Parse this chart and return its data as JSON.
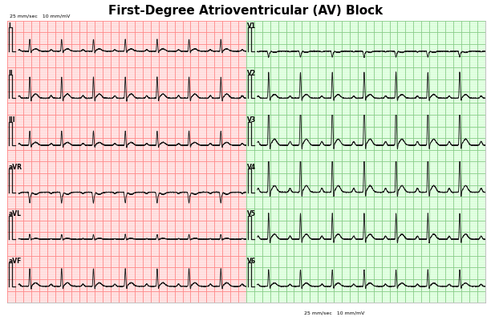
{
  "title": "First-Degree Atrioventricular (AV) Block",
  "title_fontsize": 11,
  "title_fontweight": "bold",
  "background_color": "#FFFFFF",
  "grid_minor_color": "#FFBBBB",
  "grid_major_color": "#FF8888",
  "grid_minor_color_right": "#BBFFBB",
  "grid_major_color_right": "#88CC88",
  "ecg_color": "#1a1a1a",
  "lead_labels_left": [
    "I",
    "II",
    "III",
    "aVR",
    "aVL",
    "aVF"
  ],
  "lead_labels_right": [
    "V1",
    "V2",
    "V3",
    "V4",
    "V5",
    "V6"
  ],
  "calibration_text": "25 mm/sec   10 mm/mV",
  "paper_color_left": "#FFEEEE",
  "paper_color_right": "#EEFFEE",
  "n_rows": 6,
  "n_cols": 2,
  "hr": 75,
  "pr_interval": 0.28,
  "lead_amplitudes": {
    "I": 0.5,
    "II": 0.9,
    "III": 0.6,
    "aVR": -0.45,
    "aVL": 0.2,
    "aVF": 0.75,
    "V1": -0.25,
    "V2": 0.8,
    "V3": 1.3,
    "V4": 1.4,
    "V5": 1.1,
    "V6": 0.7
  },
  "lead_r_extra": {
    "I": 0.0,
    "II": 0.0,
    "III": 0.0,
    "aVR": 0.0,
    "aVL": 0.0,
    "aVF": 0.0,
    "V1": 0.0,
    "V2": 0.3,
    "V3": 0.5,
    "V4": 0.2,
    "V5": 0.0,
    "V6": 0.0
  }
}
